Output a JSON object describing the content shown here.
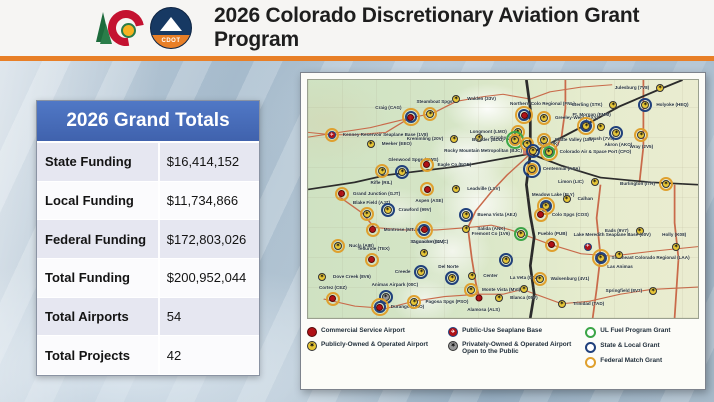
{
  "slide": {
    "title": "2026 Colorado Discretionary Aviation Grant Program"
  },
  "logos": {
    "cdot_label": "CDOT"
  },
  "totals_table": {
    "title": "2026 Grand Totals",
    "rows": [
      {
        "label": "State Funding",
        "value": "$16,414,152"
      },
      {
        "label": "Local Funding",
        "value": "$11,734,866"
      },
      {
        "label": "Federal Funding",
        "value": "$172,803,026"
      },
      {
        "label": "Total Funding",
        "value": "$200,952,044"
      },
      {
        "label": "Total Airports",
        "value": "54"
      },
      {
        "label": "Total Projects",
        "value": "42"
      }
    ]
  },
  "map": {
    "colors": {
      "federal": "#dfa02e",
      "state": "#20407c",
      "ulfuel": "#3ba547",
      "commercial": "#b01116",
      "public": "#e7c636",
      "private": "#979797",
      "seaplane": "#b01116"
    },
    "legend_columns": [
      {
        "items": [
          {
            "type": "airport",
            "icon": "commercial",
            "label": "Commercial Service Airport"
          },
          {
            "type": "airport",
            "icon": "public",
            "label": "Publicly-Owned & Operated Airport"
          }
        ]
      },
      {
        "items": [
          {
            "type": "airport",
            "icon": "seaplane",
            "label": "Public-Use Seaplane Base"
          },
          {
            "type": "airport",
            "icon": "private",
            "label": "Privately-Owned & Operated Airport Open to the Public"
          }
        ]
      },
      {
        "items": [
          {
            "type": "grant",
            "ring": "ulfuel",
            "label": "UL Fuel Program Grant"
          },
          {
            "type": "grant",
            "ring": "state",
            "label": "State & Local Grant"
          },
          {
            "type": "grant",
            "ring": "federal",
            "label": "Federal Match Grant"
          }
        ]
      }
    ],
    "markers": [
      {
        "label": "Kenney Reservoir Seaplane Base (1V8)",
        "x": 6.1,
        "y": 23.3,
        "rings": [
          "federal"
        ],
        "icon": "seaplane",
        "lp": "right"
      },
      {
        "label": "Meeker (EEO)",
        "x": 16.1,
        "y": 26.7,
        "rings": [],
        "icon": "public",
        "lp": "right"
      },
      {
        "label": "Craig (CAG)",
        "x": 26.3,
        "y": 15.6,
        "rings": [
          "federal",
          "state"
        ],
        "icon": "commercial",
        "lp": "left-top"
      },
      {
        "label": "Steamboat Spgs",
        "x": 31.4,
        "y": 14.1,
        "rings": [
          "federal"
        ],
        "icon": "public",
        "lp": "top"
      },
      {
        "label": "Walden (33V)",
        "x": 38.0,
        "y": 8.1,
        "rings": [],
        "icon": "public",
        "lp": "right"
      },
      {
        "label": "Kremmling (20V)",
        "x": 37.5,
        "y": 24.8,
        "rings": [],
        "icon": "public",
        "lp": "left"
      },
      {
        "label": "Granby (GNB)",
        "x": 43.9,
        "y": 24.4,
        "rings": [],
        "icon": "public",
        "lp": "right"
      },
      {
        "label": "Northern Colo Regional (FNL)",
        "x": 55.4,
        "y": 14.8,
        "rings": [
          "federal",
          "state"
        ],
        "icon": "commercial",
        "lp": "top"
      },
      {
        "label": "Greeley-Weld (GXY)",
        "x": 60.5,
        "y": 15.9,
        "rings": [
          "federal"
        ],
        "icon": "public",
        "lp": "right"
      },
      {
        "label": "Sterling (STK)",
        "x": 78.3,
        "y": 10.7,
        "rings": [],
        "icon": "public",
        "lp": "left"
      },
      {
        "label": "Julesburg (7V8)",
        "x": 90.3,
        "y": 3.5,
        "rings": [],
        "icon": "public",
        "lp": "left"
      },
      {
        "label": "Holyoke (HEQ)",
        "x": 86.5,
        "y": 10.4,
        "rings": [
          "state"
        ],
        "icon": "public",
        "lp": "right"
      },
      {
        "label": "Ft. Morgan (FMM)",
        "x": 71.4,
        "y": 19.3,
        "rings": [
          "federal",
          "state"
        ],
        "icon": "public",
        "lp": "top"
      },
      {
        "label": "Brush (7V5)",
        "x": 75.0,
        "y": 19.6,
        "rings": [],
        "icon": "public",
        "lp": "bottom"
      },
      {
        "label": "Akron (AKO)",
        "x": 79.1,
        "y": 22.2,
        "rings": [
          "state"
        ],
        "icon": "public",
        "lp": "bottom"
      },
      {
        "label": "Wray (2V5)",
        "x": 85.5,
        "y": 23.3,
        "rings": [
          "federal"
        ],
        "icon": "public",
        "lp": "bottom"
      },
      {
        "label": "Longmont (LMO)",
        "x": 53.8,
        "y": 21.9,
        "rings": [
          "federal"
        ],
        "icon": "public",
        "lp": "left"
      },
      {
        "label": "Boulder (BDU)",
        "x": 53.0,
        "y": 25.2,
        "rings": [
          "ulfuel",
          "federal"
        ],
        "icon": "public",
        "lp": "left"
      },
      {
        "label": "Erie (EIK)",
        "x": 56.2,
        "y": 26.9,
        "rings": [
          "federal"
        ],
        "icon": "public",
        "lp": "right"
      },
      {
        "label": "Rocky Mountain Metropolitan (BJC)",
        "x": 57.7,
        "y": 29.8,
        "rings": [
          "state"
        ],
        "icon": "public",
        "lp": "left"
      },
      {
        "label": "Platte Valley (18V)",
        "x": 60.5,
        "y": 25.2,
        "rings": [
          "federal"
        ],
        "icon": "public",
        "lp": "right"
      },
      {
        "label": "Colorado Air & Space Port (CFO)",
        "x": 61.7,
        "y": 30.4,
        "rings": [
          "federal",
          "ulfuel"
        ],
        "icon": "public",
        "lp": "right"
      },
      {
        "label": "Centennial (APA)",
        "x": 57.4,
        "y": 37.4,
        "rings": [
          "state",
          "federal"
        ],
        "icon": "public",
        "lp": "right"
      },
      {
        "label": "Limon (LIC)",
        "x": 73.5,
        "y": 43.0,
        "rings": [],
        "icon": "public",
        "lp": "left"
      },
      {
        "label": "Burlington (ITR)",
        "x": 91.8,
        "y": 43.7,
        "rings": [
          "federal"
        ],
        "icon": "public",
        "lp": "left"
      },
      {
        "label": "Rifle (RIL)",
        "x": 19.1,
        "y": 38.1,
        "rings": [
          "federal"
        ],
        "icon": "public",
        "lp": "bottom"
      },
      {
        "label": "Glenwood Spgs (GWS)",
        "x": 24.2,
        "y": 38.5,
        "rings": [
          "state"
        ],
        "icon": "public",
        "lp": "top"
      },
      {
        "label": "Eagle Co (EGE)",
        "x": 30.4,
        "y": 35.6,
        "rings": [
          "federal"
        ],
        "icon": "commercial",
        "lp": "right"
      },
      {
        "label": "Aspen (ASE)",
        "x": 30.6,
        "y": 45.9,
        "rings": [
          "federal"
        ],
        "icon": "commercial",
        "lp": "bottom"
      },
      {
        "label": "Leadville (LXV)",
        "x": 38.0,
        "y": 45.9,
        "rings": [],
        "icon": "public",
        "lp": "right"
      },
      {
        "label": "Grand Junction (GJT)",
        "x": 8.7,
        "y": 47.8,
        "rings": [
          "federal"
        ],
        "icon": "commercial",
        "lp": "right"
      },
      {
        "label": "Blake Field (AJZ)",
        "x": 15.1,
        "y": 56.3,
        "rings": [
          "federal"
        ],
        "icon": "public",
        "lp": "top"
      },
      {
        "label": "Crawford (99V)",
        "x": 20.4,
        "y": 54.8,
        "rings": [
          "state"
        ],
        "icon": "public",
        "lp": "right"
      },
      {
        "label": "Montrose (MTJ)",
        "x": 16.6,
        "y": 63.0,
        "rings": [
          "federal"
        ],
        "icon": "commercial",
        "lp": "right"
      },
      {
        "label": "Gunnison (GUC)",
        "x": 29.8,
        "y": 63.0,
        "rings": [
          "federal",
          "state"
        ],
        "icon": "commercial",
        "lp": "bottom"
      },
      {
        "label": "Nucla (AIB)",
        "x": 7.7,
        "y": 69.6,
        "rings": [
          "federal"
        ],
        "icon": "public",
        "lp": "right"
      },
      {
        "label": "Telluride (TEX)",
        "x": 16.3,
        "y": 75.6,
        "rings": [
          "federal"
        ],
        "icon": "commercial",
        "lp": "top"
      },
      {
        "label": "Dove Creek (8V6)",
        "x": 3.6,
        "y": 82.6,
        "rings": [],
        "icon": "public",
        "lp": "right"
      },
      {
        "label": "Cortez (CEZ)",
        "x": 6.4,
        "y": 92.0,
        "rings": [
          "federal"
        ],
        "icon": "commercial",
        "lp": "top"
      },
      {
        "label": "Animas Airpark (00C)",
        "x": 19.9,
        "y": 91.0,
        "rings": [
          "state"
        ],
        "icon": "private",
        "lp": "top"
      },
      {
        "label": "Durango (DRO)",
        "x": 18.4,
        "y": 95.5,
        "rings": [
          "federal",
          "state"
        ],
        "icon": "commercial",
        "lp": "right"
      },
      {
        "label": "Pagosa Spgs (PSO)",
        "x": 27.3,
        "y": 93.4,
        "rings": [
          "federal"
        ],
        "icon": "public",
        "lp": "right"
      },
      {
        "label": "Saguache (04V)",
        "x": 29.8,
        "y": 72.6,
        "rings": [],
        "icon": "public",
        "lp": "top"
      },
      {
        "label": "Creede",
        "x": 29.1,
        "y": 80.7,
        "rings": [
          "state"
        ],
        "icon": "public",
        "lp": "left"
      },
      {
        "label": "Del Norte",
        "x": 37.0,
        "y": 83.3,
        "rings": [
          "state"
        ],
        "icon": "public",
        "lp": "top"
      },
      {
        "label": "Center",
        "x": 42.1,
        "y": 82.2,
        "rings": [],
        "icon": "public",
        "lp": "right"
      },
      {
        "label": "Monte Vista (MVI)",
        "x": 41.8,
        "y": 88.1,
        "rings": [
          "federal"
        ],
        "icon": "public",
        "lp": "right"
      },
      {
        "label": "Alamosa (ALS)",
        "x": 43.9,
        "y": 91.5,
        "rings": [],
        "icon": "commercial",
        "lp": "bottom"
      },
      {
        "label": "Blanca (05V)",
        "x": 49.0,
        "y": 91.5,
        "rings": [],
        "icon": "public",
        "lp": "right"
      },
      {
        "label": "La Veta (07V)",
        "x": 55.4,
        "y": 87.8,
        "rings": [],
        "icon": "public",
        "lp": "top"
      },
      {
        "label": "Walsenburg (4V1)",
        "x": 59.4,
        "y": 83.7,
        "rings": [
          "federal"
        ],
        "icon": "public",
        "lp": "right"
      },
      {
        "label": "",
        "x": 50.8,
        "y": 75.6,
        "rings": [
          "state"
        ],
        "icon": "public",
        "lp": "top"
      },
      {
        "label": "Trinidad (TAD)",
        "x": 65.1,
        "y": 94.1,
        "rings": [],
        "icon": "public",
        "lp": "right"
      },
      {
        "label": "Springfield (8V7)",
        "x": 88.5,
        "y": 88.5,
        "rings": [],
        "icon": "public",
        "lp": "left"
      },
      {
        "label": "Eads (9V7)",
        "x": 85.0,
        "y": 63.3,
        "rings": [],
        "icon": "public",
        "lp": "left"
      },
      {
        "label": "Holly (K08)",
        "x": 94.4,
        "y": 70.0,
        "rings": [],
        "icon": "public",
        "lp": "top"
      },
      {
        "label": "Lake Meredith Seaplane Base (60V)",
        "x": 71.7,
        "y": 70.0,
        "rings": [],
        "icon": "seaplane",
        "lp": "top"
      },
      {
        "label": "Southeast Colorado Regional (LAA)",
        "x": 75.0,
        "y": 74.8,
        "rings": [
          "federal",
          "state"
        ],
        "icon": "public",
        "lp": "right"
      },
      {
        "label": "Las Animas",
        "x": 79.8,
        "y": 73.6,
        "rings": [],
        "icon": "public",
        "lp": "bottom"
      },
      {
        "label": "Pueblo (PUB)",
        "x": 62.5,
        "y": 69.3,
        "rings": [
          "federal"
        ],
        "icon": "commercial",
        "lp": "top"
      },
      {
        "label": "Fremont Co (1V6)",
        "x": 54.6,
        "y": 64.8,
        "rings": [
          "ulfuel"
        ],
        "icon": "public",
        "lp": "left"
      },
      {
        "label": "Meadow Lake (FLY)",
        "x": 61.0,
        "y": 53.0,
        "rings": [
          "federal",
          "state"
        ],
        "icon": "public",
        "lp": "top"
      },
      {
        "label": "Calhan",
        "x": 66.3,
        "y": 50.0,
        "rings": [],
        "icon": "public",
        "lp": "right"
      },
      {
        "label": "Colo Spgs (COS)",
        "x": 59.7,
        "y": 56.7,
        "rings": [
          "federal"
        ],
        "icon": "commercial",
        "lp": "right"
      },
      {
        "label": "Buena Vista (AEJ)",
        "x": 40.6,
        "y": 56.7,
        "rings": [
          "state"
        ],
        "icon": "public",
        "lp": "right"
      },
      {
        "label": "Salida (ANK)",
        "x": 40.6,
        "y": 62.6,
        "rings": [],
        "icon": "public",
        "lp": "right"
      }
    ]
  }
}
